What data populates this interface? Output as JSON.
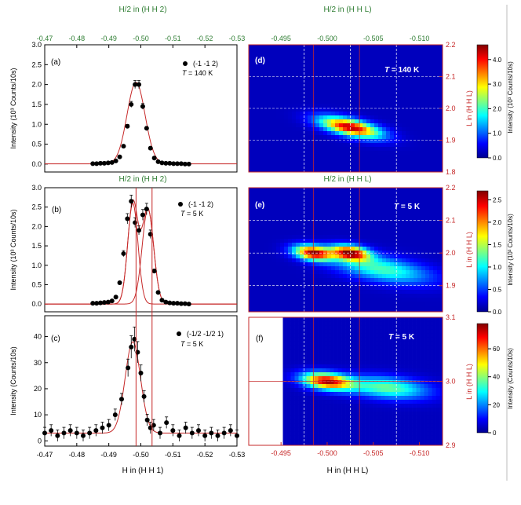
{
  "chart_data": [
    {
      "id": "a",
      "type": "scatter",
      "panel_label": "(a)",
      "legend": "(-1 -1 2)",
      "temp_prefix": "T",
      "temp_value": " = 140 K",
      "ylabel": "Intensity (10³ Counts/10s)",
      "top_axis_label": "H/2 in (H H 2)",
      "top_ticks": [
        "-0.47",
        "-0.48",
        "-0.49",
        "-0.50",
        "-0.51",
        "-0.52",
        "-0.53"
      ],
      "y_ticks": [
        "0.0",
        "0.5",
        "1.0",
        "1.5",
        "2.0",
        "2.5",
        "3.0"
      ],
      "xlim": [
        -0.47,
        -0.53
      ],
      "ylim": [
        -0.2,
        3.0
      ],
      "points": {
        "x": [
          -0.485,
          -0.4862,
          -0.4874,
          -0.4886,
          -0.4898,
          -0.491,
          -0.4922,
          -0.4934,
          -0.4946,
          -0.4958,
          -0.497,
          -0.4982,
          -0.4994,
          -0.5006,
          -0.5018,
          -0.503,
          -0.5042,
          -0.5054,
          -0.5066,
          -0.5078,
          -0.509,
          -0.5102,
          -0.5114,
          -0.5126,
          -0.5138,
          -0.515
        ],
        "y": [
          0.01,
          0.01,
          0.02,
          0.02,
          0.03,
          0.04,
          0.08,
          0.18,
          0.45,
          0.95,
          1.5,
          2.0,
          2.0,
          1.45,
          0.9,
          0.4,
          0.15,
          0.06,
          0.03,
          0.02,
          0.02,
          0.01,
          0.01,
          0.01,
          0.0,
          0.0
        ]
      },
      "fit": [
        {
          "center": -0.4985,
          "amplitude": 2.05,
          "sigma": 0.0028,
          "offset": 0.005
        }
      ]
    },
    {
      "id": "b",
      "type": "scatter",
      "panel_label": "(b)",
      "legend": "(-1 -1 2)",
      "temp_prefix": "T",
      "temp_value": " = 5 K",
      "ylabel": "Intensity (10³ Counts/10s)",
      "top_axis_label": "H/2 in (H H 2)",
      "y_ticks": [
        "0.0",
        "0.5",
        "1.0",
        "1.5",
        "2.0",
        "2.5",
        "3.0"
      ],
      "xlim": [
        -0.47,
        -0.53
      ],
      "ylim": [
        -0.2,
        3.0
      ],
      "points": {
        "x": [
          -0.485,
          -0.4862,
          -0.4874,
          -0.4886,
          -0.4898,
          -0.491,
          -0.4922,
          -0.4934,
          -0.4946,
          -0.4958,
          -0.497,
          -0.4982,
          -0.4994,
          -0.5006,
          -0.5018,
          -0.503,
          -0.5042,
          -0.5054,
          -0.5066,
          -0.5078,
          -0.509,
          -0.5102,
          -0.5114,
          -0.5126,
          -0.5138,
          -0.515
        ],
        "y": [
          0.02,
          0.02,
          0.03,
          0.04,
          0.05,
          0.08,
          0.18,
          0.55,
          1.3,
          2.2,
          2.65,
          2.1,
          1.9,
          2.3,
          2.45,
          1.8,
          0.85,
          0.3,
          0.1,
          0.05,
          0.03,
          0.02,
          0.02,
          0.01,
          0.01,
          0.0
        ]
      },
      "fit": [
        {
          "center": -0.4975,
          "amplitude": 2.6,
          "sigma": 0.0016,
          "offset": 0.0
        },
        {
          "center": -0.5022,
          "amplitude": 2.45,
          "sigma": 0.0018,
          "offset": 0.0
        }
      ]
    },
    {
      "id": "c",
      "type": "scatter",
      "panel_label": "(c)",
      "legend": "(-1/2 -1/2 1)",
      "temp_prefix": "T",
      "temp_value": " = 5 K",
      "ylabel": "Intensity (Counts/10s)",
      "xlabel": "H in (H H 1)",
      "x_ticks": [
        "-0.47",
        "-0.48",
        "-0.49",
        "-0.50",
        "-0.51",
        "-0.52",
        "-0.53"
      ],
      "y_ticks": [
        "0",
        "10",
        "20",
        "30",
        "40"
      ],
      "xlim": [
        -0.47,
        -0.53
      ],
      "ylim": [
        -2,
        48
      ],
      "points": {
        "x": [
          -0.47,
          -0.472,
          -0.474,
          -0.476,
          -0.478,
          -0.48,
          -0.482,
          -0.484,
          -0.486,
          -0.488,
          -0.49,
          -0.492,
          -0.494,
          -0.496,
          -0.497,
          -0.498,
          -0.499,
          -0.5,
          -0.501,
          -0.502,
          -0.503,
          -0.504,
          -0.506,
          -0.508,
          -0.51,
          -0.512,
          -0.514,
          -0.516,
          -0.518,
          -0.52,
          -0.522,
          -0.524,
          -0.526,
          -0.528,
          -0.53
        ],
        "y": [
          3,
          4,
          2,
          3,
          4,
          3,
          2,
          3,
          4,
          5,
          6,
          10,
          16,
          28,
          36,
          39,
          34,
          26,
          17,
          8,
          5,
          6,
          3,
          7,
          4,
          2,
          5,
          3,
          4,
          2,
          3,
          2,
          3,
          4,
          2
        ]
      },
      "fit": [
        {
          "center": -0.4975,
          "amplitude": 35,
          "sigma": 0.0024,
          "offset": 3
        }
      ],
      "vlines": [
        -0.4985,
        -0.5035
      ]
    },
    {
      "id": "d",
      "type": "heatmap",
      "panel_label": "(d)",
      "temp_prefix": "T",
      "temp_value": " = 140 K",
      "top_axis_label": "H/2 in (H H L)",
      "top_ticks": [
        "-0.495",
        "-0.500",
        "-0.505",
        "-0.510"
      ],
      "right_axis_label": "L in (H H L)",
      "right_ticks": [
        "1.8",
        "1.9",
        "2.0",
        "2.1",
        "2.2"
      ],
      "h_range": [
        -0.4915,
        -0.5125
      ],
      "l_range": [
        1.8,
        2.2
      ],
      "blobs": [
        {
          "h": -0.5025,
          "l": 1.94,
          "amp": 4.4,
          "sh": 0.0022,
          "sl": 0.022,
          "tilt": 0.6
        }
      ],
      "colorbar": {
        "ticks": [
          "0.0",
          "1.0",
          "2.0",
          "3.0",
          "4.0"
        ],
        "max": 4.6,
        "label": "Intensity (10³ Counts/10s)"
      }
    },
    {
      "id": "e",
      "type": "heatmap",
      "panel_label": "(e)",
      "temp_prefix": "T",
      "temp_value": " = 5 K",
      "top_axis_label": "H/2 in (H H L)",
      "right_axis_label": "L in (H H L)",
      "right_ticks": [
        "1.9",
        "2.0",
        "2.1",
        "2.2"
      ],
      "h_range": [
        -0.4915,
        -0.5125
      ],
      "l_range": [
        1.82,
        2.2
      ],
      "blobs": [
        {
          "h": -0.4985,
          "l": 2.0,
          "amp": 2.6,
          "sh": 0.0014,
          "sl": 0.016,
          "tilt": 0.3
        },
        {
          "h": -0.5025,
          "l": 2.0,
          "amp": 2.6,
          "sh": 0.0014,
          "sl": 0.016,
          "tilt": 0.3
        },
        {
          "h": -0.506,
          "l": 1.95,
          "amp": 1.1,
          "sh": 0.0035,
          "sl": 0.03,
          "tilt": 0.5
        }
      ],
      "colorbar": {
        "ticks": [
          "0.0",
          "0.5",
          "1.0",
          "1.5",
          "2.0",
          "2.5"
        ],
        "max": 2.7,
        "label": "Intensity (10³ Counts/10s)"
      }
    },
    {
      "id": "f",
      "type": "heatmap",
      "panel_label": "(f)",
      "temp_prefix": "T",
      "temp_value": " = 5 K",
      "xlabel": "H in (H H L)",
      "x_ticks": [
        "-0.495",
        "-0.500",
        "-0.505",
        "-0.510"
      ],
      "right_axis_label": "L in (H H L)",
      "right_ticks": [
        "2.9",
        "3.0",
        "3.1"
      ],
      "h_range": [
        -0.4915,
        -0.5125
      ],
      "l_range": [
        2.9,
        3.1
      ],
      "data_h_start": -0.4952,
      "blobs": [
        {
          "h": -0.5,
          "l": 3.0,
          "amp": 72,
          "sh": 0.0018,
          "sl": 0.009,
          "tilt": 0.3
        },
        {
          "h": -0.5065,
          "l": 2.99,
          "amp": 35,
          "sh": 0.003,
          "sl": 0.012,
          "tilt": 0.3
        }
      ],
      "colorbar": {
        "ticks": [
          "0",
          "20",
          "40",
          "60"
        ],
        "max": 78,
        "label": "Intensity (Counts/10s)"
      }
    }
  ]
}
